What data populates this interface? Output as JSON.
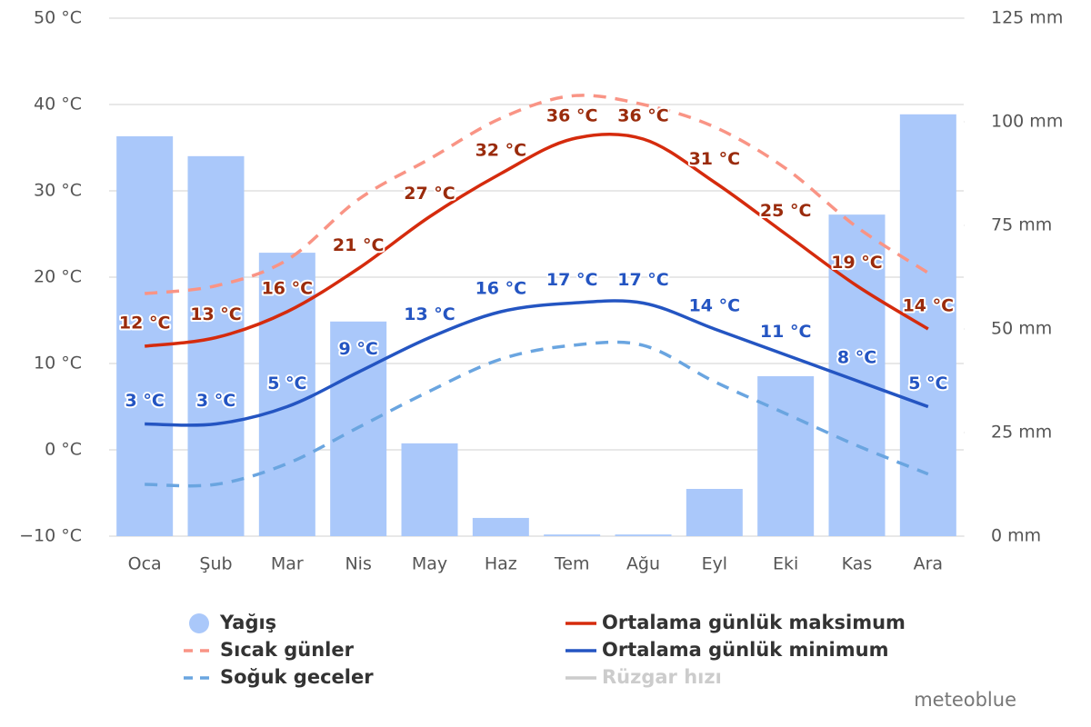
{
  "chart_data": {
    "type": "combo",
    "categories": [
      "Oca",
      "Şub",
      "Mar",
      "Nis",
      "May",
      "Haz",
      "Tem",
      "Ağu",
      "Eyl",
      "Eki",
      "Kas",
      "Ara"
    ],
    "ylim": [
      -10,
      50
    ],
    "yticks": [
      {
        "value": -10,
        "label": "−10 °C"
      },
      {
        "value": 0,
        "label": "0 °C"
      },
      {
        "value": 10,
        "label": "10 °C"
      },
      {
        "value": 20,
        "label": "20 °C"
      },
      {
        "value": 30,
        "label": "30 °C"
      },
      {
        "value": 40,
        "label": "40 °C"
      },
      {
        "value": 50,
        "label": "50 °C"
      }
    ],
    "y2lim": [
      0,
      125
    ],
    "y2ticks": [
      {
        "value": 0,
        "label": "0 mm"
      },
      {
        "value": 25,
        "label": "25 mm"
      },
      {
        "value": 50,
        "label": "50 mm"
      },
      {
        "value": 75,
        "label": "75 mm"
      },
      {
        "value": 100,
        "label": "100 mm"
      },
      {
        "value": 125,
        "label": "125 mm"
      }
    ],
    "grid": true,
    "series": [
      {
        "name": "Yağış",
        "type": "bar",
        "axis": "y2",
        "color": "#aac8fa",
        "values": [
          96.5,
          91.7,
          68.4,
          51.8,
          22.4,
          4.4,
          0.4,
          0.4,
          11.4,
          38.6,
          77.6,
          101.8
        ]
      },
      {
        "name": "Ortalama günlük maksimum",
        "type": "line",
        "color": "#d52b0d",
        "label_color": "#9a2b0c",
        "values": [
          12,
          13,
          16,
          21,
          27,
          32,
          36,
          36,
          31,
          25,
          19,
          14
        ],
        "value_labels": [
          "12 °C",
          "13 °C",
          "16 °C",
          "21 °C",
          "27 °C",
          "32 °C",
          "36 °C",
          "36 °C",
          "31 °C",
          "25 °C",
          "19 °C",
          "14 °C"
        ]
      },
      {
        "name": "Sıcak günler",
        "type": "line",
        "dashed": true,
        "color": "#f99485",
        "values": [
          18.1,
          19,
          22,
          29,
          33.7,
          38.4,
          41,
          40,
          37.4,
          32.6,
          25.8,
          20.5
        ]
      },
      {
        "name": "Ortalama günlük minimum",
        "type": "line",
        "color": "#2455c2",
        "label_color": "#2455c2",
        "values": [
          3,
          3,
          5,
          9,
          13,
          16,
          17,
          17,
          14,
          11,
          8,
          5
        ],
        "value_labels": [
          "3 °C",
          "3 °C",
          "5 °C",
          "9 °C",
          "13 °C",
          "16 °C",
          "17 °C",
          "17 °C",
          "14 °C",
          "11 °C",
          "8 °C",
          "5 °C"
        ]
      },
      {
        "name": "Soğuk geceler",
        "type": "line",
        "dashed": true,
        "color": "#6aa5e0",
        "values": [
          -4,
          -4,
          -1.6,
          2.6,
          6.8,
          10.5,
          12.1,
          12.1,
          7.9,
          4.2,
          0.5,
          -2.8
        ]
      }
    ],
    "hidden_series": [
      {
        "name": "Rüzgar hızı",
        "color": "#cccccc"
      }
    ],
    "credit": "meteoblue"
  }
}
